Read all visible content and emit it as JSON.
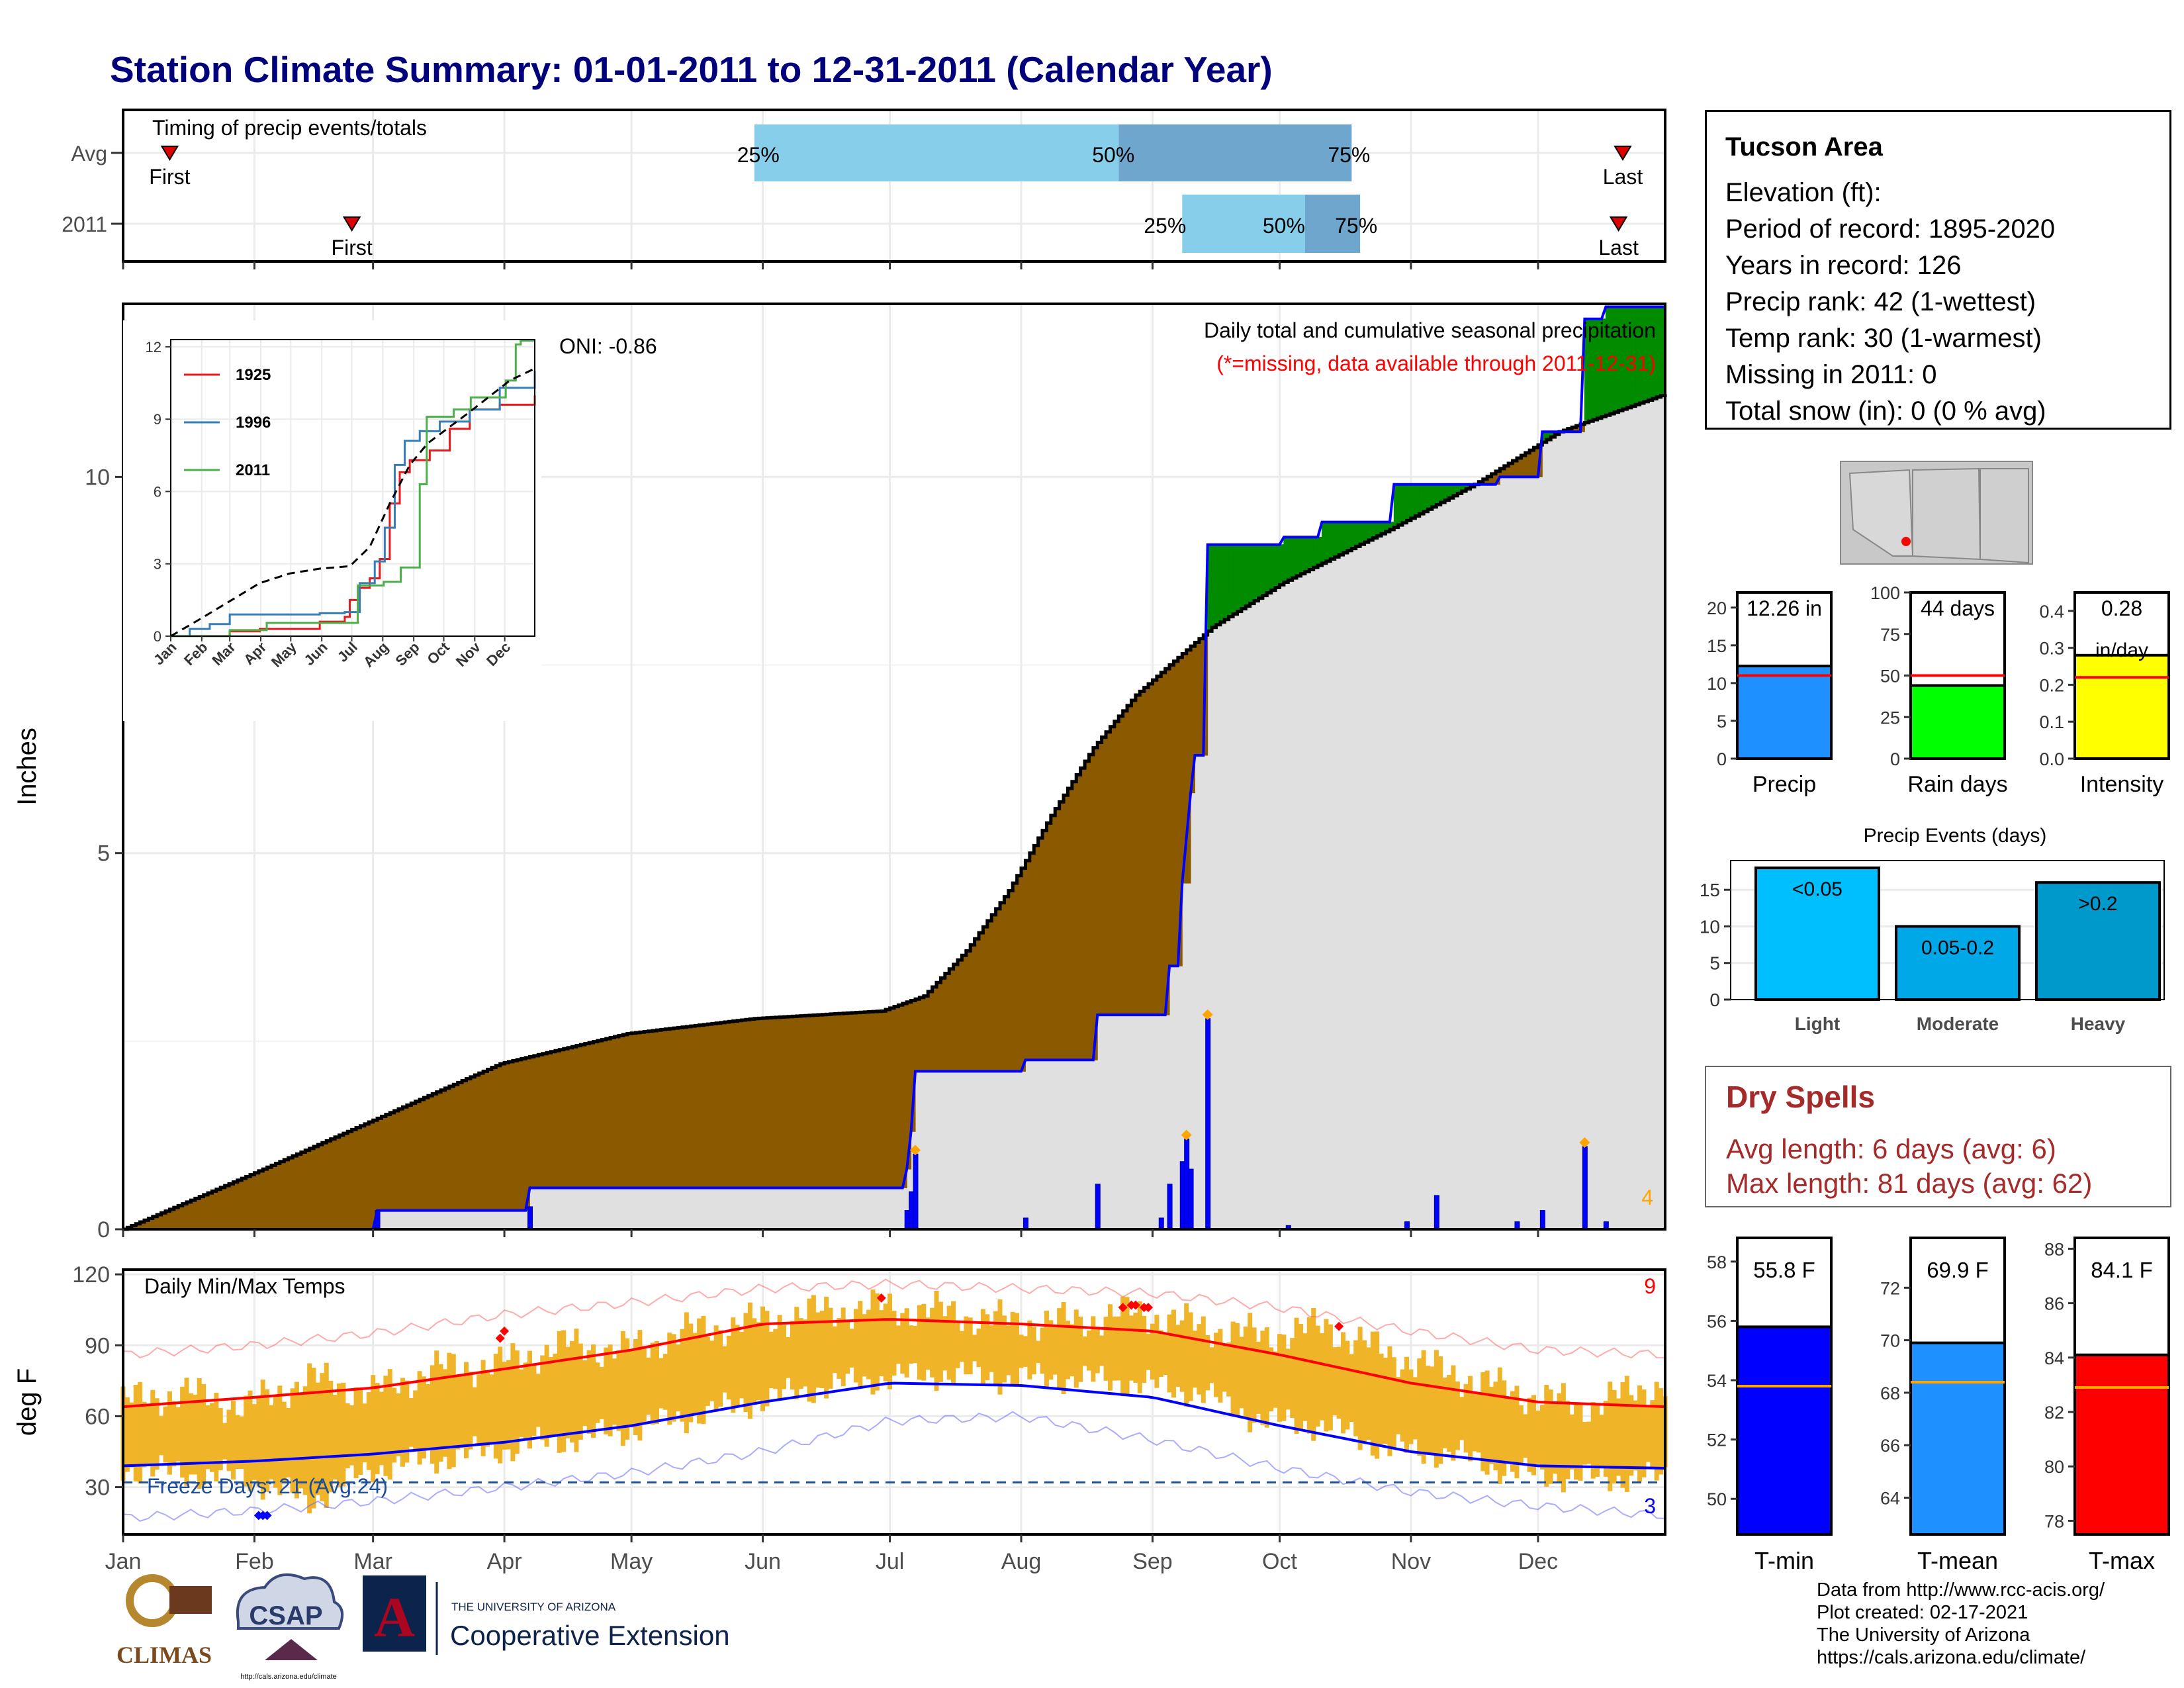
{
  "title": "Station Climate Summary: 01-01-2011 to 12-31-2011 (Calendar Year)",
  "colors": {
    "title": "#00007d",
    "hist_avg": "#8b5a00",
    "surplus": "#008b00",
    "current_fill": "#e0e0e0",
    "daily_bar": "#0000ff",
    "q_light": "#87ceeb",
    "q_dark": "#6ea6cd",
    "temp_bar": "#f0b429",
    "tmax_line": "#ff0000",
    "tmin_line": "#0000ff",
    "dry_spell": "#a52a2a"
  },
  "timing": {
    "title": "Timing of precip events/totals",
    "rows": [
      {
        "label": "Avg",
        "first_label": "First",
        "last_label": "Last",
        "first_day": 12,
        "last_day": 355,
        "q25_day": 150,
        "q50_day": 236,
        "q75_day": 291,
        "q25_label": "25%",
        "q50_label": "50%",
        "q75_label": "75%"
      },
      {
        "label": "2011",
        "first_label": "First",
        "last_label": "Last",
        "first_day": 55,
        "last_day": 354,
        "q25_day": 251,
        "q50_day": 280,
        "q75_day": 293,
        "q25_label": "25%",
        "q50_label": "50%",
        "q75_label": "75%"
      }
    ]
  },
  "precip_panel": {
    "ylabel": "Inches",
    "yticks": [
      "0",
      "5",
      "10"
    ],
    "oni": "ONI: -0.86",
    "title": "Daily total and cumulative seasonal precipitation",
    "missing_note": "(*=missing, data available through 2011-12-31)",
    "max_daily_count": "4"
  },
  "inset": {
    "yticks": [
      "0",
      "3",
      "6",
      "9",
      "12"
    ],
    "xticks": [
      "Jan",
      "Feb",
      "Mar",
      "Apr",
      "May",
      "Jun",
      "Jul",
      "Aug",
      "Sep",
      "Oct",
      "Nov",
      "Dec"
    ],
    "legend": [
      {
        "name": "1925",
        "color": "#e41a1c"
      },
      {
        "name": "1996",
        "color": "#377eb8"
      },
      {
        "name": "2011",
        "color": "#4daf4a"
      }
    ]
  },
  "temp_panel": {
    "ylabel": "deg F",
    "title": "Daily Min/Max Temps",
    "yticks": [
      "30",
      "60",
      "90",
      "120"
    ],
    "freeze_text": "Freeze Days: 21 (Avg:24)",
    "record_high_count": "9",
    "record_low_count": "3"
  },
  "months": [
    "Jan",
    "Feb",
    "Mar",
    "Apr",
    "May",
    "Jun",
    "Jul",
    "Aug",
    "Sep",
    "Oct",
    "Nov",
    "Dec"
  ],
  "station": {
    "name": "Tucson Area",
    "lines": [
      "Elevation (ft):",
      "Period of record: 1895-2020",
      "Years in record: 126",
      "Precip rank: 42 (1-wettest)",
      "Temp rank: 30 (1-warmest)",
      "Missing in 2011: 0",
      "Total snow (in): 0 (0 % avg)"
    ]
  },
  "mini_bars": [
    {
      "label": "Precip",
      "value_text": "12.26 in",
      "value": 12.26,
      "avg": 11.0,
      "ymax": 22,
      "ticks": [
        "0",
        "5",
        "10",
        "15",
        "20"
      ],
      "tick_vals": [
        0,
        5,
        10,
        15,
        20
      ],
      "color": "#1e90ff"
    },
    {
      "label": "Rain days",
      "value_text": "44 days",
      "value": 44,
      "avg": 50,
      "ymax": 100,
      "ticks": [
        "0",
        "25",
        "50",
        "75",
        "100"
      ],
      "tick_vals": [
        0,
        25,
        50,
        75,
        100
      ],
      "color": "#00ff00"
    },
    {
      "label": "Intensity",
      "value_text": "0.28",
      "value_text2": "in/day",
      "value": 0.28,
      "avg": 0.22,
      "ymax": 0.45,
      "ticks": [
        "0.0",
        "0.1",
        "0.2",
        "0.3",
        "0.4"
      ],
      "tick_vals": [
        0,
        0.1,
        0.2,
        0.3,
        0.4
      ],
      "color": "#ffff00"
    }
  ],
  "precip_events": {
    "title": "Precip Events (days)",
    "yticks": [
      "0",
      "5",
      "10",
      "15"
    ],
    "bars": [
      {
        "category": "Light",
        "label": "<0.05",
        "value": 18,
        "color": "#00bfff"
      },
      {
        "category": "Moderate",
        "label": "0.05-0.2",
        "value": 10,
        "color": "#00a8e8"
      },
      {
        "category": "Heavy",
        "label": ">0.2",
        "value": 16,
        "color": "#0099cc"
      }
    ]
  },
  "dry_spells": {
    "title": "Dry Spells",
    "lines": [
      "Avg length: 6 days (avg: 6)",
      "Max length: 81 days (avg: 62)"
    ]
  },
  "temp_bars": [
    {
      "label": "T-min",
      "value_text": "55.8 F",
      "value": 55.8,
      "avg": 53.8,
      "ymin": 48.8,
      "ymax": 58.8,
      "ticks": [
        "50",
        "52",
        "54",
        "56",
        "58"
      ],
      "tick_vals": [
        50,
        52,
        54,
        56,
        58
      ],
      "color": "#0000ff"
    },
    {
      "label": "T-mean",
      "value_text": "69.9 F",
      "value": 69.9,
      "avg": 68.4,
      "ymin": 62.6,
      "ymax": 73.9,
      "ticks": [
        "64",
        "66",
        "68",
        "70",
        "72"
      ],
      "tick_vals": [
        64,
        66,
        68,
        70,
        72
      ],
      "color": "#1e90ff"
    },
    {
      "label": "T-max",
      "value_text": "84.1 F",
      "value": 84.1,
      "avg": 82.9,
      "ymin": 77.5,
      "ymax": 88.4,
      "ticks": [
        "78",
        "80",
        "82",
        "84",
        "86",
        "88"
      ],
      "tick_vals": [
        78,
        80,
        82,
        84,
        86,
        88
      ],
      "color": "#ff0000"
    }
  ],
  "logos": {
    "climas": "CLIMAS",
    "csap": "CSAP",
    "csap_url": "http://cals.arizona.edu/climate",
    "ua_small": "THE UNIVERSITY OF ARIZONA",
    "coop": "Cooperative Extension",
    "ua_letter": "A"
  },
  "credits": [
    "Data from http://www.rcc-acis.org/",
    "Plot created: 02-17-2021",
    "The University of Arizona",
    "https://cals.arizona.edu/climate/"
  ],
  "chart_data": [
    {
      "type": "area",
      "title": "Daily total and cumulative seasonal precipitation",
      "ylabel": "Inches",
      "ylim": [
        0,
        12.3
      ],
      "x_unit": "day of year",
      "series": [
        {
          "name": "2011",
          "x": [
            1,
            60,
            61,
            96,
            97,
            185,
            186,
            187,
            188,
            213,
            214,
            230,
            231,
            247,
            248,
            250,
            251,
            253,
            254,
            256,
            257,
            274,
            275,
            283,
            284,
            300,
            301,
            325,
            326,
            335,
            336,
            345,
            346,
            350,
            351,
            365
          ],
          "y": [
            0,
            0,
            0.25,
            0.25,
            0.55,
            0.55,
            0.8,
            1.3,
            2.1,
            2.1,
            2.25,
            2.25,
            2.85,
            2.85,
            3.5,
            3.5,
            4.6,
            5.8,
            6.3,
            6.3,
            9.1,
            9.1,
            9.2,
            9.2,
            9.4,
            9.4,
            9.9,
            9.9,
            10.0,
            10.0,
            10.6,
            10.6,
            12.1,
            12.1,
            12.26,
            12.26
          ]
        },
        {
          "name": "historical average",
          "x": [
            1,
            30,
            60,
            90,
            120,
            150,
            180,
            190,
            200,
            210,
            220,
            230,
            240,
            250,
            258,
            275,
            300,
            320,
            340,
            365
          ],
          "y": [
            0,
            0.7,
            1.45,
            2.2,
            2.6,
            2.8,
            2.9,
            3.1,
            3.7,
            4.5,
            5.5,
            6.4,
            7.1,
            7.6,
            8.0,
            8.6,
            9.3,
            9.9,
            10.6,
            11.1
          ]
        }
      ],
      "daily_events": [
        {
          "day": 61,
          "value": 0.25
        },
        {
          "day": 97,
          "value": 0.3
        },
        {
          "day": 186,
          "value": 0.25
        },
        {
          "day": 187,
          "value": 0.5
        },
        {
          "day": 188,
          "value": 1.0
        },
        {
          "day": 214,
          "value": 0.15
        },
        {
          "day": 231,
          "value": 0.6
        },
        {
          "day": 246,
          "value": 0.15
        },
        {
          "day": 248,
          "value": 0.6
        },
        {
          "day": 251,
          "value": 0.9
        },
        {
          "day": 252,
          "value": 1.2
        },
        {
          "day": 253,
          "value": 0.8
        },
        {
          "day": 257,
          "value": 2.8
        },
        {
          "day": 276,
          "value": 0.05
        },
        {
          "day": 304,
          "value": 0.1
        },
        {
          "day": 311,
          "value": 0.45
        },
        {
          "day": 330,
          "value": 0.1
        },
        {
          "day": 336,
          "value": 0.25
        },
        {
          "day": 346,
          "value": 1.1
        },
        {
          "day": 351,
          "value": 0.1
        }
      ],
      "record_days": [
        188,
        252,
        257,
        346
      ]
    },
    {
      "type": "line",
      "title": "",
      "x_unit": "day of year",
      "ylim": [
        0,
        12.5
      ],
      "series": [
        {
          "name": "1925",
          "x": [
            1,
            60,
            90,
            150,
            175,
            180,
            190,
            200,
            210,
            220,
            230,
            240,
            260,
            280,
            300,
            330,
            365
          ],
          "y": [
            0,
            0.2,
            0.3,
            0.6,
            0.8,
            1.5,
            2.0,
            2.4,
            3.2,
            5.5,
            6.8,
            7.3,
            7.7,
            8.6,
            9.4,
            9.6,
            10.0
          ]
        },
        {
          "name": "1996",
          "x": [
            1,
            20,
            40,
            60,
            150,
            175,
            190,
            205,
            215,
            225,
            235,
            250,
            270,
            300,
            330,
            365
          ],
          "y": [
            0,
            0.3,
            0.5,
            0.9,
            0.95,
            1.0,
            2.2,
            3.1,
            4.5,
            7.1,
            8.1,
            8.5,
            8.9,
            9.4,
            10.3,
            11.0
          ]
        },
        {
          "name": "2011",
          "x": [
            1,
            60,
            97,
            185,
            188,
            214,
            231,
            250,
            257,
            284,
            301,
            336,
            346,
            351,
            365
          ],
          "y": [
            0,
            0.25,
            0.55,
            0.55,
            2.1,
            2.25,
            2.85,
            6.3,
            9.1,
            9.4,
            9.9,
            10.6,
            12.1,
            12.26,
            12.26
          ]
        },
        {
          "name": "average",
          "x": [
            1,
            30,
            60,
            90,
            120,
            150,
            180,
            200,
            220,
            240,
            258,
            300,
            340,
            365
          ],
          "y": [
            0,
            0.7,
            1.45,
            2.2,
            2.6,
            2.8,
            2.9,
            3.7,
            5.5,
            7.1,
            8.0,
            9.3,
            10.6,
            11.1
          ]
        }
      ]
    },
    {
      "type": "line",
      "title": "Daily Min/Max Temps",
      "ylabel": "deg F",
      "ylim": [
        10,
        122
      ],
      "x_unit": "day of year",
      "series": [
        {
          "name": "normal max",
          "x": [
            1,
            32,
            60,
            91,
            121,
            152,
            182,
            213,
            244,
            274,
            305,
            335,
            365
          ],
          "y": [
            64,
            68,
            72,
            80,
            88,
            99,
            101,
            99,
            96,
            86,
            74,
            66,
            64
          ]
        },
        {
          "name": "normal min",
          "x": [
            1,
            32,
            60,
            91,
            121,
            152,
            182,
            213,
            244,
            274,
            305,
            335,
            365
          ],
          "y": [
            39,
            41,
            44,
            49,
            56,
            66,
            74,
            73,
            68,
            56,
            45,
            39,
            38
          ]
        },
        {
          "name": "record max",
          "x": [
            1,
            32,
            60,
            91,
            121,
            152,
            182,
            213,
            244,
            274,
            305,
            335,
            365
          ],
          "y": [
            86,
            90,
            95,
            103,
            108,
            114,
            116,
            114,
            112,
            106,
            96,
            88,
            86
          ]
        },
        {
          "name": "record min",
          "x": [
            1,
            32,
            60,
            91,
            121,
            152,
            182,
            213,
            244,
            274,
            305,
            335,
            365
          ],
          "y": [
            17,
            20,
            24,
            30,
            36,
            45,
            58,
            60,
            50,
            38,
            28,
            22,
            18
          ]
        },
        {
          "name": "2011 max",
          "x": [
            1,
            15,
            30,
            45,
            60,
            75,
            90,
            105,
            120,
            135,
            150,
            165,
            180,
            195,
            210,
            225,
            240,
            255,
            270,
            285,
            300,
            315,
            330,
            345,
            365
          ],
          "y": [
            66,
            70,
            64,
            76,
            70,
            80,
            82,
            90,
            88,
            96,
            100,
            104,
            106,
            104,
            100,
            100,
            104,
            98,
            94,
            98,
            86,
            78,
            70,
            64,
            74
          ]
        },
        {
          "name": "2011 min",
          "x": [
            1,
            15,
            30,
            45,
            60,
            75,
            90,
            105,
            120,
            135,
            150,
            165,
            180,
            195,
            210,
            225,
            240,
            255,
            270,
            285,
            300,
            315,
            330,
            345,
            365
          ],
          "y": [
            38,
            36,
            34,
            24,
            38,
            42,
            46,
            50,
            54,
            60,
            66,
            72,
            76,
            78,
            76,
            76,
            74,
            70,
            58,
            56,
            46,
            44,
            36,
            34,
            34
          ]
        }
      ],
      "freeze_days": 21,
      "freeze_line": 32,
      "record_highs": [
        {
          "day": 90,
          "value": 93
        },
        {
          "day": 91,
          "value": 96
        },
        {
          "day": 180,
          "value": 110
        },
        {
          "day": 237,
          "value": 106
        },
        {
          "day": 239,
          "value": 107
        },
        {
          "day": 240,
          "value": 107
        },
        {
          "day": 242,
          "value": 106
        },
        {
          "day": 243,
          "value": 106
        },
        {
          "day": 288,
          "value": 98
        }
      ],
      "record_lows": [
        {
          "day": 33,
          "value": 18
        },
        {
          "day": 34,
          "value": 18
        },
        {
          "day": 35,
          "value": 18
        }
      ]
    }
  ]
}
